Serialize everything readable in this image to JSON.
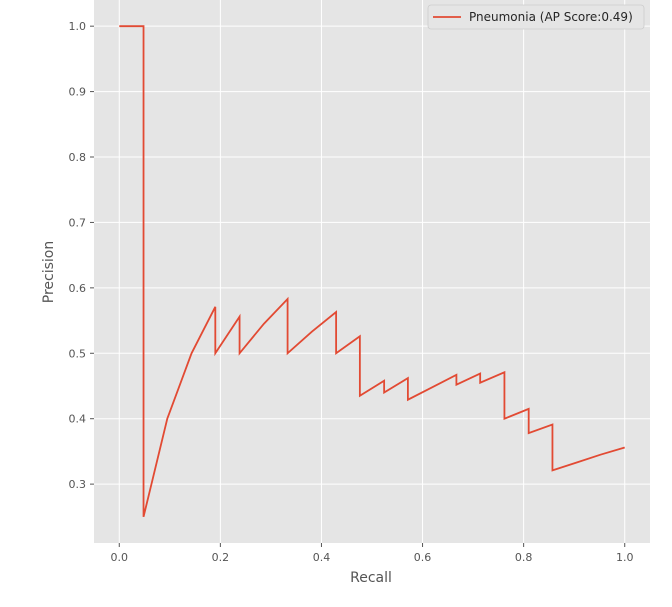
{
  "chart_data": {
    "type": "line",
    "xlabel": "Recall",
    "ylabel": "Precision",
    "xlim": [
      -0.05,
      1.05
    ],
    "ylim": [
      0.21,
      1.04
    ],
    "x_ticks": [
      0.0,
      0.2,
      0.4,
      0.6,
      0.8,
      1.0
    ],
    "x_tick_labels": [
      "0.0",
      "0.2",
      "0.4",
      "0.6",
      "0.8",
      "1.0"
    ],
    "y_ticks": [
      0.3,
      0.4,
      0.5,
      0.6,
      0.7,
      0.8,
      0.9,
      1.0
    ],
    "y_tick_labels": [
      "0.3",
      "0.4",
      "0.5",
      "0.6",
      "0.7",
      "0.8",
      "0.9",
      "1.0"
    ],
    "grid": true,
    "legend_position": "top-right",
    "colors": {
      "plot_bg": "#e5e5e5",
      "grid": "#ffffff",
      "line": "#e24a33"
    },
    "series": [
      {
        "name": "Pneumonia (AP Score:0.49)",
        "x": [
          0.0,
          0.048,
          0.048,
          0.095,
          0.143,
          0.19,
          0.19,
          0.238,
          0.238,
          0.286,
          0.333,
          0.333,
          0.381,
          0.429,
          0.429,
          0.476,
          0.476,
          0.524,
          0.524,
          0.571,
          0.571,
          0.619,
          0.667,
          0.667,
          0.714,
          0.714,
          0.762,
          0.762,
          0.81,
          0.81,
          0.857,
          0.857,
          0.905,
          0.952,
          1.0
        ],
        "y": [
          1.0,
          1.0,
          0.25,
          0.4,
          0.5,
          0.571,
          0.5,
          0.556,
          0.5,
          0.545,
          0.583,
          0.5,
          0.533,
          0.563,
          0.5,
          0.526,
          0.435,
          0.458,
          0.44,
          0.462,
          0.429,
          0.448,
          0.467,
          0.452,
          0.469,
          0.455,
          0.471,
          0.4,
          0.415,
          0.378,
          0.391,
          0.321,
          0.333,
          0.345,
          0.356
        ]
      }
    ]
  }
}
